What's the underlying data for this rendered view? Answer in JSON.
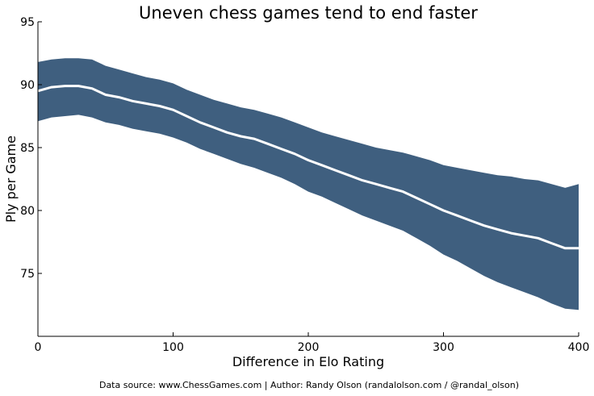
{
  "chart_data": {
    "type": "area",
    "title": "Uneven chess games tend to end faster",
    "xlabel": "Difference in Elo Rating",
    "ylabel": "Ply per Game",
    "source": "Data source: www.ChessGames.com | Author: Randy Olson (randalolson.com / @randal_olson)",
    "xlim": [
      0,
      400
    ],
    "ylim": [
      70,
      95
    ],
    "xticks": [
      0,
      100,
      200,
      300,
      400
    ],
    "yticks": [
      75,
      80,
      85,
      90,
      95
    ],
    "grid": false,
    "colors": {
      "band": "#3f5f7f",
      "line": "#ffffff"
    },
    "series": [
      {
        "x": [
          0,
          10,
          20,
          30,
          40,
          50,
          60,
          70,
          80,
          90,
          100,
          110,
          120,
          130,
          140,
          150,
          160,
          170,
          180,
          190,
          200,
          210,
          220,
          230,
          240,
          250,
          260,
          270,
          280,
          290,
          300,
          310,
          320,
          330,
          340,
          350,
          360,
          370,
          380,
          390,
          400
        ],
        "mean": [
          89.5,
          89.8,
          89.9,
          89.9,
          89.7,
          89.2,
          89.0,
          88.7,
          88.5,
          88.3,
          88.0,
          87.5,
          87.0,
          86.6,
          86.2,
          85.9,
          85.7,
          85.3,
          84.9,
          84.5,
          84.0,
          83.6,
          83.2,
          82.8,
          82.4,
          82.1,
          81.8,
          81.5,
          81.0,
          80.5,
          80.0,
          79.6,
          79.2,
          78.8,
          78.5,
          78.2,
          78.0,
          77.8,
          77.4,
          77.0,
          77.0
        ],
        "upper": [
          91.8,
          92.0,
          92.1,
          92.1,
          92.0,
          91.5,
          91.2,
          90.9,
          90.6,
          90.4,
          90.1,
          89.6,
          89.2,
          88.8,
          88.5,
          88.2,
          88.0,
          87.7,
          87.4,
          87.0,
          86.6,
          86.2,
          85.9,
          85.6,
          85.3,
          85.0,
          84.8,
          84.6,
          84.3,
          84.0,
          83.6,
          83.4,
          83.2,
          83.0,
          82.8,
          82.7,
          82.5,
          82.4,
          82.1,
          81.8,
          82.1
        ],
        "lower": [
          87.1,
          87.4,
          87.5,
          87.6,
          87.4,
          87.0,
          86.8,
          86.5,
          86.3,
          86.1,
          85.8,
          85.4,
          84.9,
          84.5,
          84.1,
          83.7,
          83.4,
          83.0,
          82.6,
          82.1,
          81.5,
          81.1,
          80.6,
          80.1,
          79.6,
          79.2,
          78.8,
          78.4,
          77.8,
          77.2,
          76.5,
          76.0,
          75.4,
          74.8,
          74.3,
          73.9,
          73.5,
          73.1,
          72.6,
          72.2,
          72.1
        ]
      }
    ]
  }
}
